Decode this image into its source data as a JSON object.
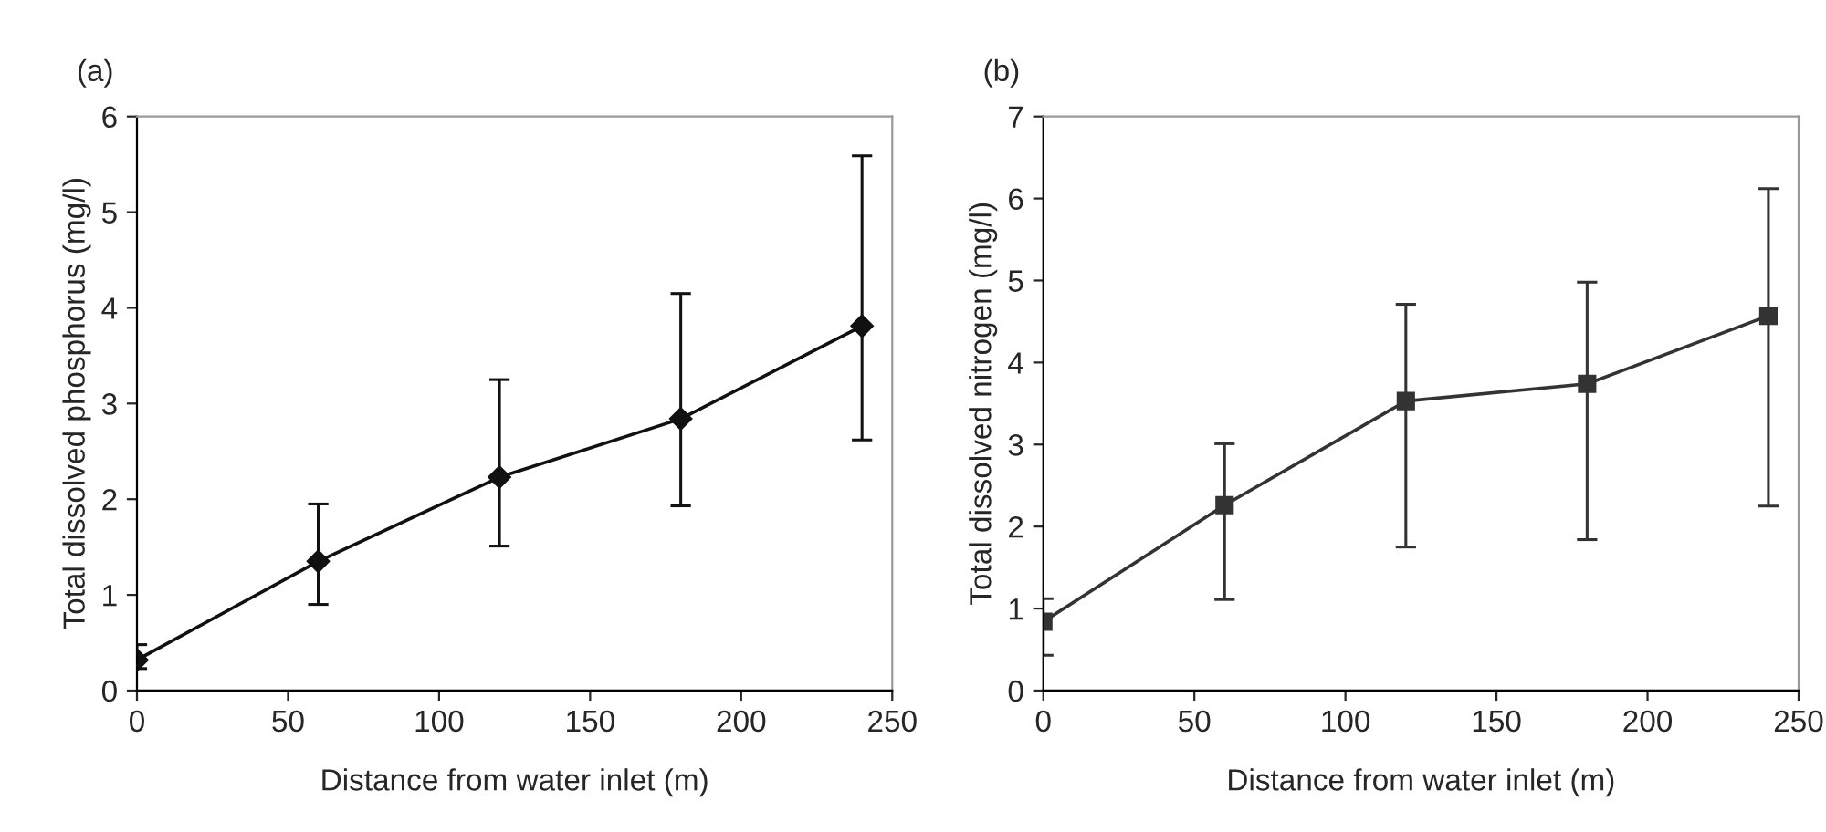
{
  "chart_data": [
    {
      "type": "line",
      "title": "(a)",
      "xlabel": "Distance from water inlet (m)",
      "ylabel": "Total dissolved phosphorus (mg/l)",
      "x": [
        0,
        60,
        120,
        180,
        240
      ],
      "marker": "diamond",
      "line_style": "solid",
      "grid": false,
      "series": [
        {
          "color": "#111111",
          "values": [
            0.32,
            1.35,
            2.23,
            2.84,
            3.81
          ],
          "errors": [
            [
              0.23,
              0.48
            ],
            [
              0.9,
              1.95
            ],
            [
              1.51,
              3.25
            ],
            [
              1.93,
              4.15
            ],
            [
              2.62,
              5.59
            ]
          ]
        }
      ],
      "xlim": [
        0,
        250
      ],
      "xticks": [
        0,
        50,
        100,
        150,
        200,
        250
      ],
      "ylim": [
        0,
        6
      ],
      "yticks": [
        0,
        1,
        2,
        3,
        4,
        5,
        6
      ]
    },
    {
      "type": "line",
      "title": "(b)",
      "xlabel": "Distance from water inlet (m)",
      "ylabel": "Total dissolved nitrogen (mg/l)",
      "x": [
        0,
        60,
        120,
        180,
        240
      ],
      "marker": "square",
      "line_style": "solid",
      "grid": false,
      "series": [
        {
          "color": "#333333",
          "values": [
            0.84,
            2.26,
            3.53,
            3.74,
            4.57
          ],
          "errors": [
            [
              0.43,
              1.12
            ],
            [
              1.11,
              3.01
            ],
            [
              1.75,
              4.71
            ],
            [
              1.84,
              4.98
            ],
            [
              2.25,
              6.12
            ]
          ]
        }
      ],
      "xlim": [
        0,
        250
      ],
      "xticks": [
        0,
        50,
        100,
        150,
        200,
        250
      ],
      "ylim": [
        0,
        7
      ],
      "yticks": [
        0,
        1,
        2,
        3,
        4,
        5,
        6,
        7
      ]
    }
  ]
}
